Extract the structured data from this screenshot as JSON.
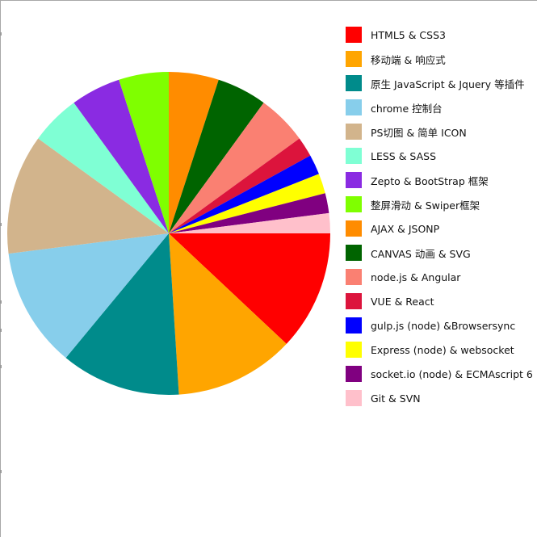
{
  "chart_data": {
    "type": "pie",
    "title": "",
    "start": "3 o'clock, clockwise",
    "legend_position": "right",
    "slices": [
      {
        "label": "HTML5 & CSS3",
        "value": 12,
        "color": "#ff0000"
      },
      {
        "label": "移动端 & 响应式",
        "value": 12,
        "color": "#ffa500"
      },
      {
        "label": "原生 JavaScript & Jquery 等插件",
        "value": 12,
        "color": "#008b8b"
      },
      {
        "label": "chrome 控制台",
        "value": 12,
        "color": "#87ceeb"
      },
      {
        "label": "PS切图 & 简单 ICON",
        "value": 12,
        "color": "#d2b48c"
      },
      {
        "label": "LESS & SASS",
        "value": 5,
        "color": "#7fffd4"
      },
      {
        "label": "Zepto & BootStrap 框架",
        "value": 5,
        "color": "#8a2be2"
      },
      {
        "label": "整屏滑动 & Swiper框架",
        "value": 5,
        "color": "#7fff00"
      },
      {
        "label": "AJAX & JSONP",
        "value": 5,
        "color": "#ff8c00"
      },
      {
        "label": "CANVAS 动画 & SVG",
        "value": 5,
        "color": "#006400"
      },
      {
        "label": "node.js & Angular",
        "value": 5,
        "color": "#fa8072"
      },
      {
        "label": "VUE & React",
        "value": 2,
        "color": "#dc143c"
      },
      {
        "label": "gulp.js (node) &Browsersync",
        "value": 2,
        "color": "#0000ff"
      },
      {
        "label": "Express (node) & websocket",
        "value": 2,
        "color": "#ffff00"
      },
      {
        "label": "socket.io (node) & ECMAscript 6",
        "value": 2,
        "color": "#800080"
      },
      {
        "label": "Git & SVN",
        "value": 2,
        "color": "#ffc0cb"
      }
    ]
  }
}
